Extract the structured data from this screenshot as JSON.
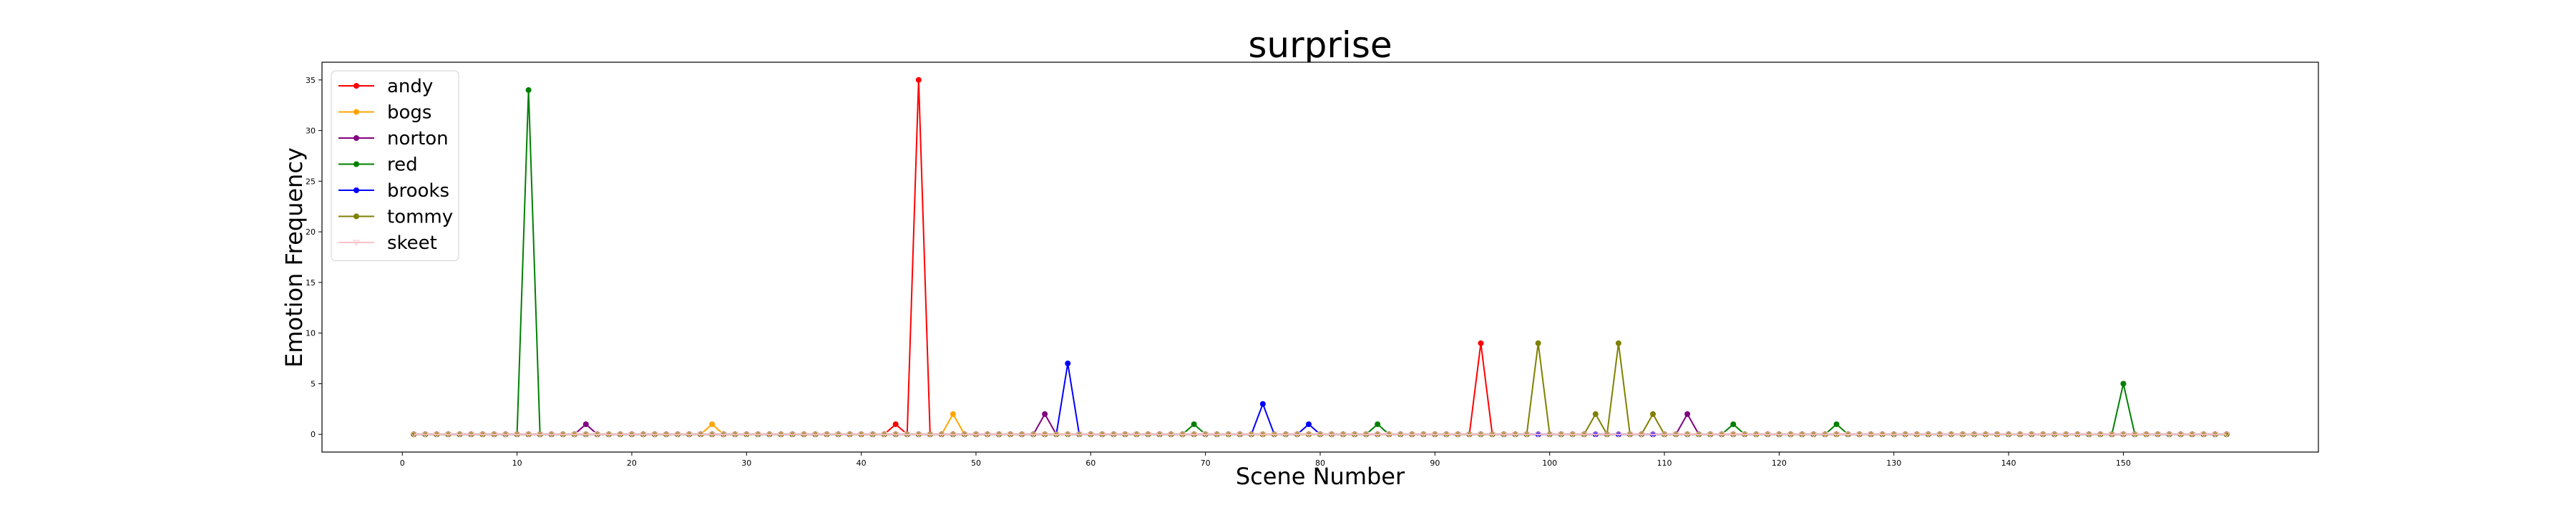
{
  "chart_data": {
    "type": "line",
    "title": "surprise",
    "xlabel": "Scene Number",
    "ylabel": "Emotion Frequency",
    "xlim": [
      -7,
      167
    ],
    "ylim": [
      -1.75,
      36.75
    ],
    "xticks": [
      0,
      10,
      20,
      30,
      40,
      50,
      60,
      70,
      80,
      90,
      100,
      110,
      120,
      130,
      140,
      150
    ],
    "yticks": [
      0,
      5,
      10,
      15,
      20,
      25,
      30,
      35
    ],
    "x_start": 1,
    "x_end": 159,
    "legend": "upper left",
    "series": [
      {
        "name": "andy",
        "color": "#ff0000",
        "marker": "circle",
        "points": [
          [
            43,
            1
          ],
          [
            45,
            35
          ],
          [
            94,
            9
          ]
        ]
      },
      {
        "name": "bogs",
        "color": "#ffa500",
        "marker": "circle",
        "points": [
          [
            27,
            1
          ],
          [
            48,
            2
          ]
        ]
      },
      {
        "name": "norton",
        "color": "#800080",
        "marker": "circle",
        "points": [
          [
            16,
            1
          ],
          [
            56,
            2
          ],
          [
            112,
            2
          ]
        ]
      },
      {
        "name": "red",
        "color": "#008000",
        "marker": "circle",
        "points": [
          [
            11,
            34
          ],
          [
            69,
            1
          ],
          [
            85,
            1
          ],
          [
            116,
            1
          ],
          [
            125,
            1
          ],
          [
            150,
            5
          ]
        ]
      },
      {
        "name": "brooks",
        "color": "#0000ff",
        "marker": "circle",
        "points": [
          [
            58,
            7
          ],
          [
            75,
            3
          ],
          [
            79,
            1
          ]
        ]
      },
      {
        "name": "tommy",
        "color": "#808000",
        "marker": "circle",
        "points": [
          [
            99,
            9
          ],
          [
            104,
            2
          ],
          [
            106,
            9
          ],
          [
            109,
            2
          ]
        ]
      },
      {
        "name": "skeet",
        "color": "#ffc0cb",
        "marker": "triangle",
        "points": []
      }
    ]
  }
}
